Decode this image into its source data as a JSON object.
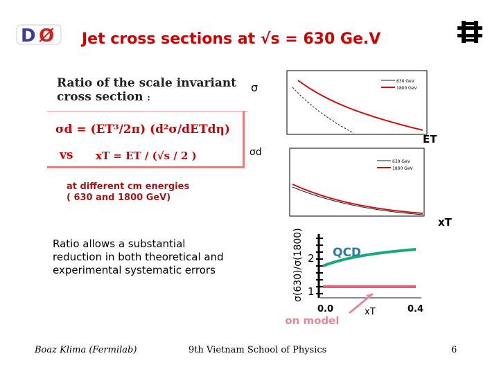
{
  "logo": {
    "d0_text": "D",
    "d0_zero": "Ø",
    "fermilab_icon": "fermilab-logo-icon"
  },
  "slide": {
    "title": "Jet cross sections at √s = 630 Ge.V"
  },
  "definition": {
    "heading_line1": "Ratio of the scale invariant",
    "heading_line2": "cross section",
    "heading_colon": ":",
    "formula": "σd = (ET³/2π) (d²σ/dETdη)",
    "vs_label": "vs",
    "xt_formula": "xT = ET / (√s / 2 )",
    "energies_line1": "at different cm energies",
    "energies_line2": "( 630 and 1800 GeV)"
  },
  "plots": {
    "top_sigma_label": "σ",
    "top_x_label": "ET",
    "top_legend_630": "630 GeV",
    "top_legend_1800": "1800 GeV",
    "mid_sigma_label": "σd",
    "mid_x_label": "xT",
    "mid_legend_630": "630 GeV",
    "mid_legend_1800": "1800 GeV",
    "ratio_ylabel": "σ(630)/σ(1800)",
    "ratio_y2": "2",
    "ratio_y1": "1",
    "ratio_x0": "0.0",
    "ratio_x04": "0.4",
    "ratio_xlabel": "xT",
    "qcd_label": "QCD",
    "parton_label": "Parton model"
  },
  "note": {
    "text": "Ratio allows a substantial reduction in both theoretical and experimental systematic errors"
  },
  "footer": {
    "author": "Boaz Klima (Fermilab)",
    "event": "9th Vietnam School of Physics",
    "page": "6"
  },
  "colors": {
    "accent": "#cc0000",
    "qcd": "#1aaa7a",
    "parton": "#e0607a"
  }
}
